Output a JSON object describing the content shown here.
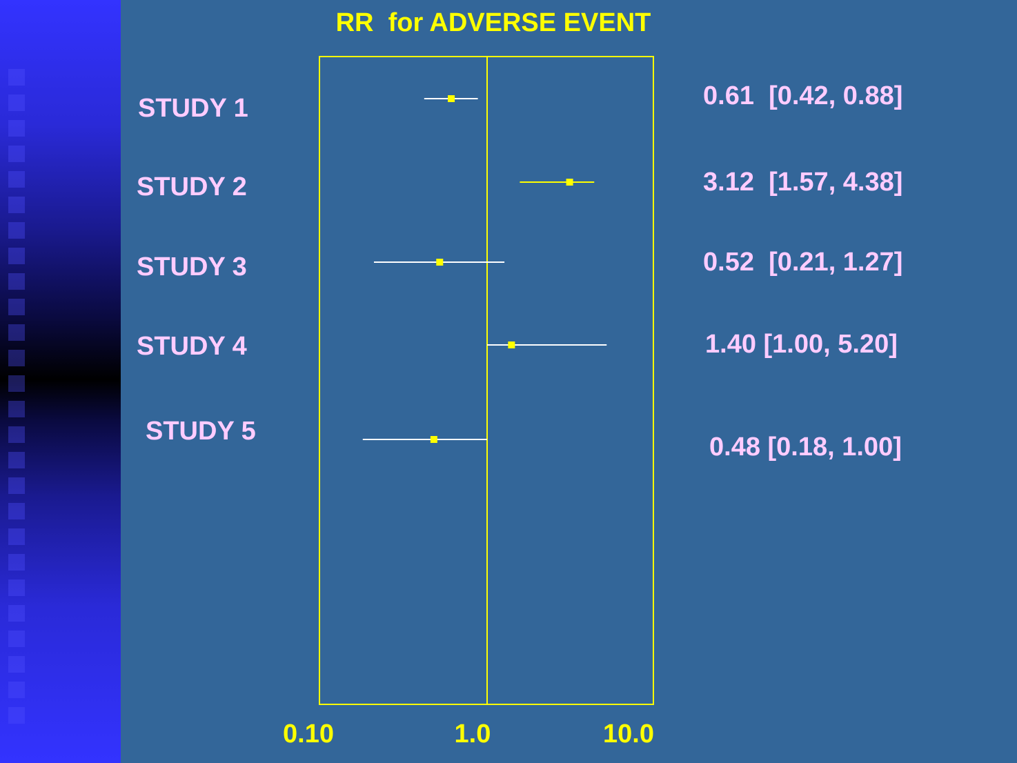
{
  "chart_data": {
    "type": "forest",
    "title": "RR  for ADVERSE EVENT",
    "xscale": "log",
    "xlim": [
      0.1,
      10.0
    ],
    "reference_line": 1.0,
    "x_tick_labels": [
      "0.10",
      "1.0",
      "10.0"
    ],
    "x_ticks": [
      0.1,
      1.0,
      10.0
    ],
    "studies": [
      {
        "label": "STUDY 1",
        "estimate": 0.61,
        "ci_low": 0.42,
        "ci_high": 0.88,
        "ci_text": "0.61  [0.42, 0.88]",
        "line_color": "#ffffff"
      },
      {
        "label": "STUDY 2",
        "estimate": 3.12,
        "ci_low": 1.57,
        "ci_high": 4.38,
        "ci_text": "3.12  [1.57, 4.38]",
        "line_color": "#ffff00"
      },
      {
        "label": "STUDY 3",
        "estimate": 0.52,
        "ci_low": 0.21,
        "ci_high": 1.27,
        "ci_text": "0.52  [0.21, 1.27]",
        "line_color": "#ffffff"
      },
      {
        "label": "STUDY 4",
        "estimate": 1.4,
        "ci_low": 1.0,
        "ci_high": 5.2,
        "ci_text": "1.40 [1.00, 5.20]",
        "line_color": "#ffffff"
      },
      {
        "label": "STUDY 5",
        "estimate": 0.48,
        "ci_low": 0.18,
        "ci_high": 1.0,
        "ci_text": "0.48 [0.18, 1.00]",
        "line_color": "#ffffff"
      }
    ],
    "colors": {
      "background": "#336699",
      "frame": "#ffff00",
      "title": "#ffff00",
      "tick_labels": "#ffff00",
      "study_labels": "#ffccff",
      "markers": "#ffff00"
    }
  }
}
